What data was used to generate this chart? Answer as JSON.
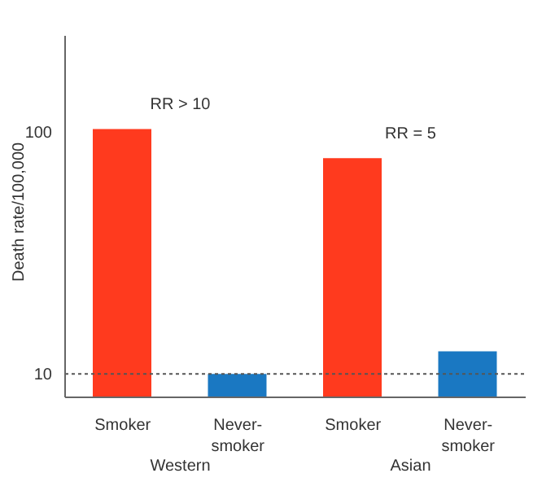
{
  "chart_data": {
    "type": "bar",
    "ylabel": "Death rate/100,000",
    "categories": [
      "Smoker",
      "Never-smoker",
      "Smoker",
      "Never-smoker"
    ],
    "values": [
      103,
      10,
      78,
      12.4
    ],
    "colors": [
      "#ff3a1e",
      "#1a78c2",
      "#ff3a1e",
      "#1a78c2"
    ],
    "log": true,
    "ylim": [
      8,
      250
    ],
    "yticks": [
      10,
      100
    ],
    "grid": false,
    "legend": false,
    "ref_lines": [
      {
        "axis": "y",
        "value": 10,
        "color": "#555555",
        "line_style": "dotted"
      }
    ],
    "annotations": [
      "RR > 10",
      "RR = 5",
      "Western",
      "Asian"
    ]
  }
}
